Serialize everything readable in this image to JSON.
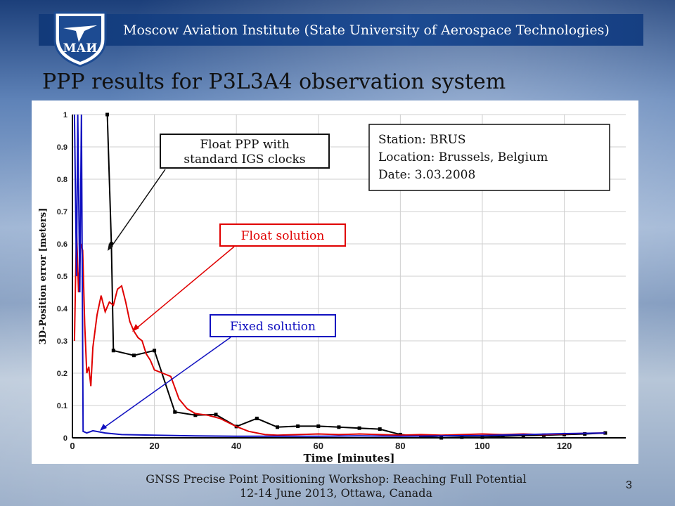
{
  "header": {
    "organization": "Moscow Aviation Institute (State University of Aerospace Technologies)",
    "logo_text": "МАИ"
  },
  "slide": {
    "title": "PPP results for P3L3A4 observation system",
    "page_number": "3"
  },
  "footer": {
    "line1": "GNSS Precise Point Positioning Workshop: Reaching Full Potential",
    "line2": "12-14 June 2013, Ottawa, Canada"
  },
  "colors": {
    "header_bar": "#1d4b92",
    "float_ppp_series": "#000000",
    "float_solution_series": "#e00000",
    "fixed_solution_series": "#1010c0",
    "float_solution_label": "#e00000",
    "fixed_solution_label": "#1010c0"
  },
  "chart_data": {
    "type": "line",
    "xlabel": "Time [minutes]",
    "ylabel": "3D-Position error [meters]",
    "xlim": [
      0,
      135
    ],
    "ylim": [
      0,
      1
    ],
    "x_ticks": [
      0,
      20,
      40,
      60,
      80,
      100,
      120
    ],
    "y_ticks": [
      0,
      0.1,
      0.2,
      0.3,
      0.4,
      0.5,
      0.6,
      0.7,
      0.8,
      0.9,
      1
    ],
    "grid": true,
    "info_box": [
      "Station: BRUS",
      "Location: Brussels, Belgium",
      "Date: 3.03.2008"
    ],
    "annotations": {
      "float_ppp": [
        "Float PPP with",
        "standard IGS clocks"
      ],
      "float_solution": "Float solution",
      "fixed_solution": "Fixed solution"
    },
    "series": [
      {
        "key": "float_ppp",
        "color": "#000000",
        "markers": true,
        "points": [
          [
            8.5,
            1.0
          ],
          [
            9.5,
            0.6
          ],
          [
            10,
            0.27
          ],
          [
            15,
            0.255
          ],
          [
            20,
            0.27
          ],
          [
            25,
            0.08
          ],
          [
            30,
            0.07
          ],
          [
            35,
            0.072
          ],
          [
            40,
            0.035
          ],
          [
            45,
            0.06
          ],
          [
            50,
            0.033
          ],
          [
            55,
            0.036
          ],
          [
            60,
            0.036
          ],
          [
            65,
            0.033
          ],
          [
            70,
            0.03
          ],
          [
            75,
            0.027
          ],
          [
            80,
            0.01
          ],
          [
            85,
            0.005
          ],
          [
            90,
            0.0
          ],
          [
            95,
            0.002
          ],
          [
            100,
            0.002
          ],
          [
            105,
            0.005
          ],
          [
            110,
            0.007
          ],
          [
            115,
            0.008
          ],
          [
            120,
            0.01
          ],
          [
            125,
            0.012
          ],
          [
            130,
            0.015
          ]
        ]
      },
      {
        "key": "float_solution",
        "color": "#e00000",
        "markers": false,
        "points": [
          [
            0.5,
            0.3
          ],
          [
            1,
            0.65
          ],
          [
            1.5,
            0.45
          ],
          [
            2,
            0.6
          ],
          [
            2.5,
            0.58
          ],
          [
            3,
            0.35
          ],
          [
            3.5,
            0.2
          ],
          [
            4,
            0.22
          ],
          [
            4.5,
            0.16
          ],
          [
            5,
            0.28
          ],
          [
            6,
            0.38
          ],
          [
            7,
            0.44
          ],
          [
            8,
            0.39
          ],
          [
            9,
            0.42
          ],
          [
            10,
            0.41
          ],
          [
            11,
            0.46
          ],
          [
            12,
            0.47
          ],
          [
            13,
            0.42
          ],
          [
            14,
            0.36
          ],
          [
            15,
            0.33
          ],
          [
            16,
            0.31
          ],
          [
            17,
            0.3
          ],
          [
            18,
            0.26
          ],
          [
            19,
            0.24
          ],
          [
            20,
            0.21
          ],
          [
            22,
            0.2
          ],
          [
            24,
            0.19
          ],
          [
            26,
            0.12
          ],
          [
            28,
            0.09
          ],
          [
            30,
            0.075
          ],
          [
            33,
            0.07
          ],
          [
            36,
            0.06
          ],
          [
            40,
            0.035
          ],
          [
            43,
            0.02
          ],
          [
            47,
            0.01
          ],
          [
            50,
            0.008
          ],
          [
            55,
            0.01
          ],
          [
            60,
            0.012
          ],
          [
            65,
            0.01
          ],
          [
            70,
            0.012
          ],
          [
            75,
            0.01
          ],
          [
            80,
            0.008
          ],
          [
            85,
            0.01
          ],
          [
            90,
            0.008
          ],
          [
            95,
            0.01
          ],
          [
            100,
            0.012
          ],
          [
            105,
            0.01
          ],
          [
            110,
            0.012
          ],
          [
            115,
            0.01
          ],
          [
            120,
            0.012
          ],
          [
            125,
            0.014
          ],
          [
            130,
            0.015
          ]
        ]
      },
      {
        "key": "fixed_solution",
        "color": "#1010c0",
        "markers": false,
        "points": [
          [
            0.5,
            1.0
          ],
          [
            1,
            0.5
          ],
          [
            1.3,
            1.0
          ],
          [
            1.8,
            0.45
          ],
          [
            2.2,
            1.0
          ],
          [
            2.6,
            0.02
          ],
          [
            3.5,
            0.015
          ],
          [
            5,
            0.022
          ],
          [
            8,
            0.015
          ],
          [
            12,
            0.01
          ],
          [
            20,
            0.008
          ],
          [
            30,
            0.006
          ],
          [
            40,
            0.005
          ],
          [
            50,
            0.005
          ],
          [
            60,
            0.005
          ],
          [
            70,
            0.006
          ],
          [
            80,
            0.005
          ],
          [
            90,
            0.006
          ],
          [
            100,
            0.007
          ],
          [
            110,
            0.01
          ],
          [
            120,
            0.013
          ],
          [
            130,
            0.015
          ]
        ]
      }
    ]
  }
}
